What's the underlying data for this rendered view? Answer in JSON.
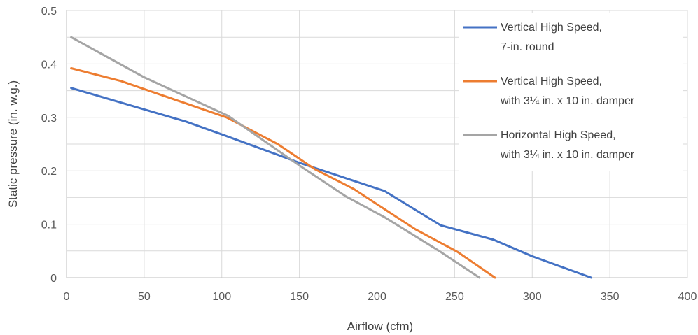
{
  "chart_data": {
    "type": "line",
    "title": "",
    "xlabel": "Airflow (cfm)",
    "ylabel": "Static pressure (in. w.g.)",
    "xlim": [
      0,
      400
    ],
    "ylim": [
      0,
      0.5
    ],
    "xticks": [
      0,
      50,
      100,
      150,
      200,
      250,
      300,
      350,
      400
    ],
    "yticks": [
      0,
      0.1,
      0.2,
      0.3,
      0.4,
      0.5
    ],
    "xtick_labels": [
      "0",
      "50",
      "100",
      "150",
      "200",
      "250",
      "300",
      "350",
      "400"
    ],
    "ytick_labels": [
      "0",
      "0.1",
      "0.2",
      "0.3",
      "0.4",
      "0.5"
    ],
    "grid": true,
    "legend_position": "top-right",
    "series": [
      {
        "name_lines": [
          "Vertical High Speed,",
          "7-in. round"
        ],
        "color": "#4472c4",
        "x": [
          3,
          77,
          103,
          150,
          205,
          241,
          275,
          300,
          338
        ],
        "y": [
          0.355,
          0.292,
          0.265,
          0.215,
          0.162,
          0.098,
          0.071,
          0.04,
          0
        ]
      },
      {
        "name_lines": [
          "Vertical High Speed,",
          "with 3¼ in. x 10 in. damper"
        ],
        "color": "#ed7d31",
        "x": [
          3,
          35,
          103,
          136,
          160,
          185,
          205,
          225,
          252,
          276
        ],
        "y": [
          0.392,
          0.368,
          0.3,
          0.25,
          0.203,
          0.166,
          0.128,
          0.09,
          0.048,
          0
        ]
      },
      {
        "name_lines": [
          "Horizontal High Speed,",
          "with 3¼ in. x 10 in. damper"
        ],
        "color": "#a5a5a5",
        "x": [
          3,
          50,
          104,
          150,
          180,
          205,
          240,
          266
        ],
        "y": [
          0.45,
          0.375,
          0.303,
          0.21,
          0.152,
          0.113,
          0.05,
          0
        ]
      }
    ]
  }
}
